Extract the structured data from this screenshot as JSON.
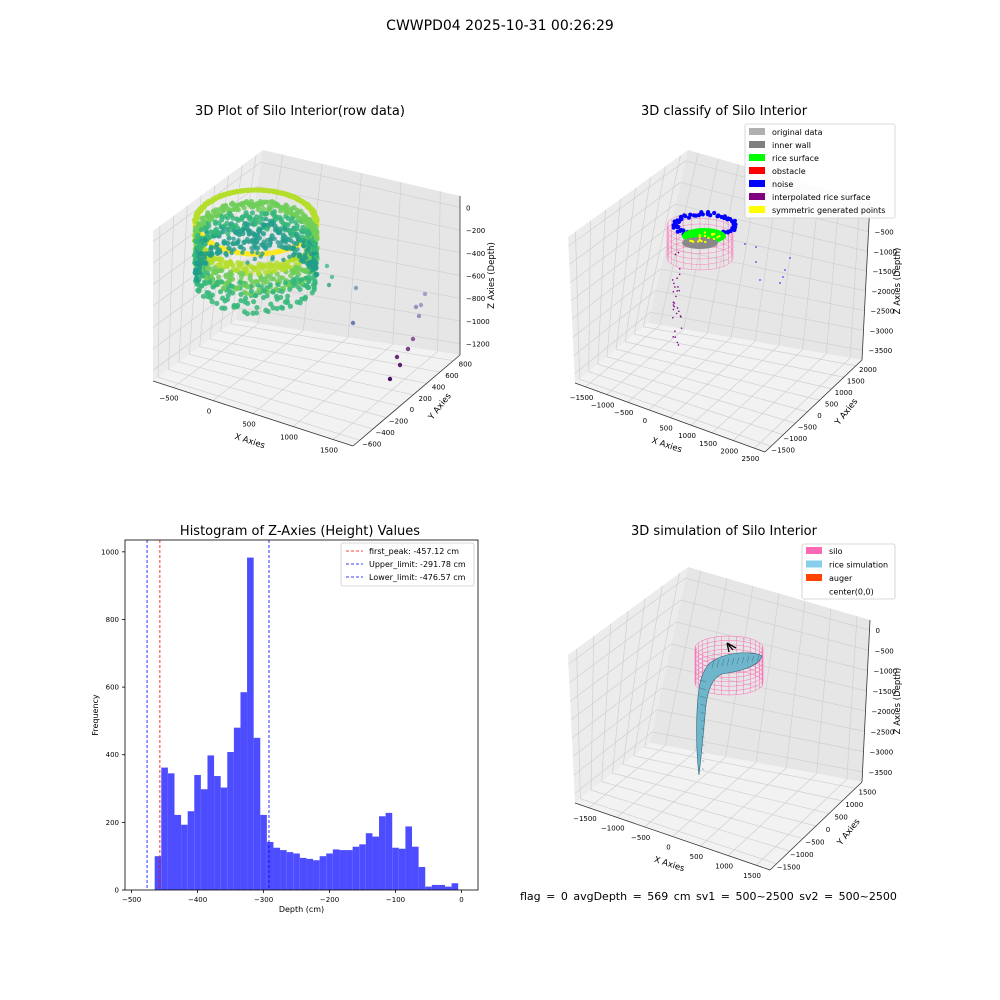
{
  "figure_title": "CWWPD04 2025-10-31 00:26:29",
  "status_text": "flag = 0     avgDepth = 569 cm  sv1 = 500~2500  sv2 = 500~2500",
  "chart_data": [
    {
      "type": "scatter",
      "title": "3D Plot of Silo Interior(row data)",
      "xlabel": "X Axies",
      "ylabel": "Y Axies",
      "zlabel": "Z Axies (Depth)",
      "x_ticks": [
        "−500",
        "0",
        "500",
        "1000",
        "1500"
      ],
      "y_ticks": [
        "−600",
        "−400",
        "−200",
        "0",
        "200",
        "400",
        "600",
        "800"
      ],
      "z_ticks": [
        "0",
        "−200",
        "−400",
        "−600",
        "−800",
        "−1000",
        "−1200"
      ],
      "colormap": "viridis",
      "grid": true
    },
    {
      "type": "scatter",
      "title": "3D classify of Silo Interior",
      "xlabel": "X Axies",
      "ylabel": "Y Axies",
      "zlabel": "Z Axies (Depth)",
      "x_ticks": [
        "−1500",
        "−1000",
        "−500",
        "0",
        "500",
        "1000",
        "1500",
        "2000",
        "2500"
      ],
      "y_ticks": [
        "−1500",
        "−1000",
        "−500",
        "0",
        "500",
        "1000",
        "1500",
        "2000"
      ],
      "z_ticks": [
        "0",
        "−500",
        "−1000",
        "−1500",
        "−2000",
        "−2500",
        "−3000",
        "−3500"
      ],
      "legend": [
        {
          "label": "original data",
          "color": "#b0b0b0"
        },
        {
          "label": "inner wall",
          "color": "#808080"
        },
        {
          "label": "rice surface",
          "color": "#00ff00"
        },
        {
          "label": "obstacle",
          "color": "#ff0000"
        },
        {
          "label": "noise",
          "color": "#0000ff"
        },
        {
          "label": "interpolated rice surface",
          "color": "#800080"
        },
        {
          "label": "symmetric generated points",
          "color": "#ffff00"
        }
      ],
      "legend_position": "top-right",
      "grid": true
    },
    {
      "type": "bar",
      "title": "Histogram of Z-Axies (Height) Values",
      "xlabel": "Depth (cm)",
      "ylabel": "Frequency",
      "xlim": [
        -510,
        25
      ],
      "ylim": [
        0,
        1035
      ],
      "x_ticks": [
        -500,
        -400,
        -300,
        -200,
        -100,
        0
      ],
      "x_tick_labels": [
        "−500",
        "−400",
        "−300",
        "−200",
        "−100",
        "0"
      ],
      "y_ticks": [
        0,
        200,
        400,
        600,
        800,
        1000
      ],
      "bin_edges_start": -465,
      "bin_width": 10,
      "bar_color": "#4d4dff",
      "values": [
        100,
        362,
        345,
        222,
        193,
        233,
        340,
        298,
        398,
        337,
        303,
        408,
        480,
        585,
        983,
        450,
        222,
        142,
        125,
        118,
        112,
        108,
        95,
        92,
        88,
        100,
        108,
        120,
        118,
        118,
        128,
        135,
        168,
        158,
        218,
        228,
        125,
        122,
        188,
        128,
        68,
        10,
        15,
        15,
        10,
        20
      ],
      "vlines": [
        {
          "label": "first_peak: -457.12 cm",
          "x": -457.12,
          "color": "#ff0000"
        },
        {
          "label": "Upper_limit: -291.78 cm",
          "x": -291.78,
          "color": "#0000ff"
        },
        {
          "label": "Lower_limit: -476.57 cm",
          "x": -476.57,
          "color": "#0000ff"
        }
      ],
      "legend_position": "top-right",
      "grid": false
    },
    {
      "type": "area",
      "title": "3D simulation of Silo Interior",
      "xlabel": "X Axies",
      "ylabel": "Y Axies",
      "zlabel": "Z Axies (Depth)",
      "x_ticks": [
        "−1500",
        "−1000",
        "−500",
        "0",
        "500",
        "1000",
        "1500"
      ],
      "y_ticks": [
        "−1500",
        "−1000",
        "−500",
        "0",
        "500",
        "1000",
        "1500"
      ],
      "z_ticks": [
        "0",
        "−500",
        "−1000",
        "−1500",
        "−2000",
        "−2500",
        "−3000",
        "−3500"
      ],
      "legend": [
        {
          "label": "silo",
          "color": "#ff69b4"
        },
        {
          "label": "rice simulation",
          "color": "#87ceeb"
        },
        {
          "label": "auger",
          "color": "#ff4500"
        },
        {
          "label": "center(0,0)",
          "color": "#ffffff"
        }
      ],
      "legend_position": "top-right",
      "grid": true
    }
  ]
}
